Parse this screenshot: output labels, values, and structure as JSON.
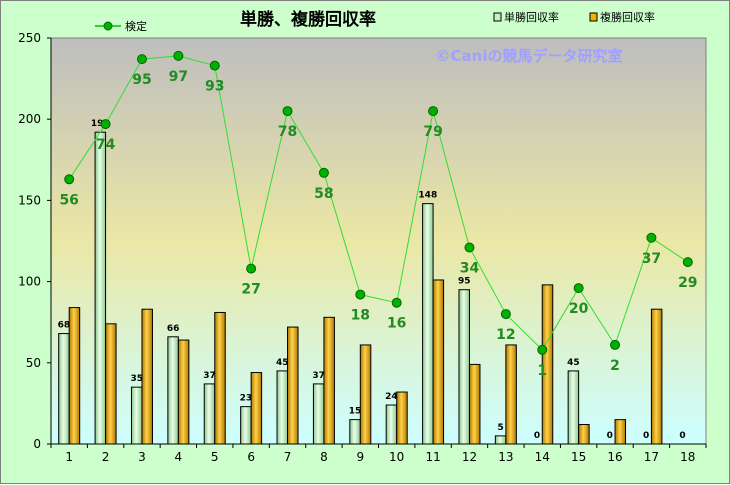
{
  "chart_data": {
    "type": "bar",
    "title": "単勝、複勝回収率",
    "watermark": "©Caniの競馬データ研究室",
    "categories": [
      "1",
      "2",
      "3",
      "4",
      "5",
      "6",
      "7",
      "8",
      "9",
      "10",
      "11",
      "12",
      "13",
      "14",
      "15",
      "16",
      "17",
      "18"
    ],
    "series": [
      {
        "name": "単勝回収率",
        "type": "bar",
        "color": "#c8f0c8",
        "values": [
          68,
          192,
          35,
          66,
          37,
          23,
          45,
          37,
          15,
          24,
          148,
          95,
          5,
          0,
          45,
          0,
          0,
          0
        ],
        "labels": [
          "68",
          "192",
          "35",
          "66",
          "37",
          "23",
          "45",
          "37",
          "15",
          "24",
          "148",
          "95",
          "5",
          "0",
          "45",
          "0",
          "0",
          "0"
        ]
      },
      {
        "name": "複勝回収率",
        "type": "bar",
        "color": "#f0b400",
        "values": [
          84,
          74,
          83,
          64,
          81,
          44,
          72,
          78,
          61,
          32,
          101,
          49,
          61,
          98,
          12,
          15,
          83,
          0
        ]
      },
      {
        "name": "検定",
        "type": "line",
        "color": "#00a000",
        "values": [
          163,
          197,
          237,
          239,
          233,
          108,
          205,
          167,
          92,
          87,
          205,
          121,
          80,
          58,
          96,
          61,
          127,
          112
        ],
        "labels": [
          "56",
          "74",
          "95",
          "97",
          "93",
          "27",
          "78",
          "58",
          "18",
          "16",
          "79",
          "34",
          "12",
          "1",
          "20",
          "2",
          "37",
          "29"
        ]
      }
    ],
    "y_ticks": [
      "0",
      "50",
      "100",
      "150",
      "200",
      "250"
    ],
    "ylim": [
      0,
      250
    ],
    "legend_position": "top"
  }
}
